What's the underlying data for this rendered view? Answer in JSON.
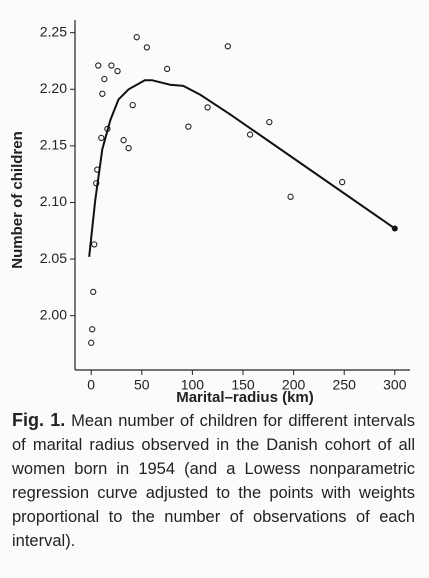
{
  "chart_data": {
    "type": "scatter",
    "xlabel": "Marital–radius (km)",
    "ylabel": "Number of children",
    "xlim": [
      -16,
      315
    ],
    "ylim": [
      1.952,
      2.255
    ],
    "xticks": [
      0,
      50,
      100,
      150,
      200,
      250,
      300
    ],
    "yticks": [
      {
        "value": 2,
        "label": "2.00"
      },
      2.05,
      {
        "value": 2.1,
        "label": "2.10"
      },
      2.15,
      {
        "value": 2.2,
        "label": "2.20"
      },
      2.25
    ],
    "series": [
      {
        "type": "scatter",
        "color": "#222222",
        "x": [
          0,
          1,
          2,
          3,
          5,
          6,
          7,
          10,
          11,
          13,
          16,
          20,
          26,
          32,
          37,
          41,
          45,
          55,
          75,
          96,
          115,
          135,
          157,
          176,
          197,
          248
        ],
        "values": [
          1.976,
          1.988,
          2.021,
          2.063,
          2.117,
          2.129,
          2.221,
          2.157,
          2.196,
          2.209,
          2.165,
          2.221,
          2.216,
          2.155,
          2.148,
          2.186,
          2.246,
          2.237,
          2.218,
          2.167,
          2.184,
          2.238,
          2.16,
          2.171,
          2.105,
          2.118
        ]
      },
      {
        "type": "line",
        "color": "#111111",
        "x": [
          -2,
          4,
          11,
          19,
          27,
          37,
          53,
          60,
          78,
          91,
          108,
          137,
          300
        ],
        "values": [
          2.052,
          2.102,
          2.147,
          2.173,
          2.191,
          2.2,
          2.208,
          2.208,
          2.204,
          2.203,
          2.195,
          2.178,
          2.077
        ]
      }
    ]
  },
  "caption": {
    "label": "Fig. 1.",
    "text": "Mean number of children for different intervals of marital radius observed in the Danish cohort of all women born in 1954 (and a Lowess nonparametric regression curve adjusted to the points with weights proportional to the number of observations of each interval)."
  }
}
